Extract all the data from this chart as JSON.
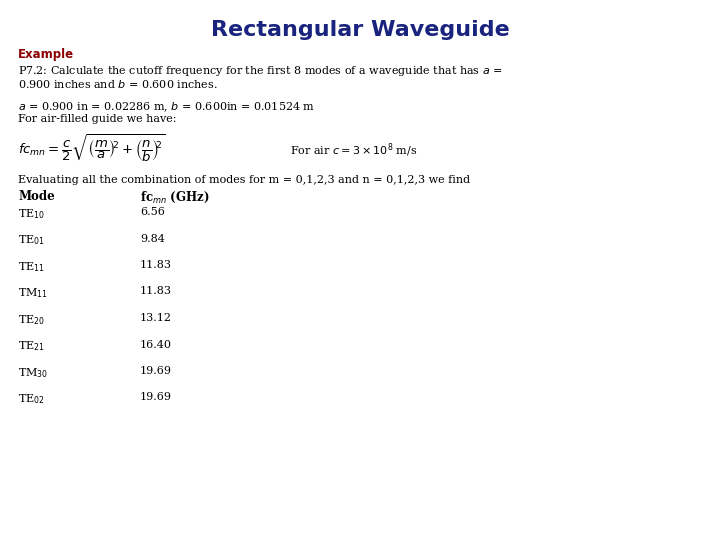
{
  "title": "Rectangular Waveguide",
  "title_color": "#1a237e",
  "title_fontsize": 16,
  "example_label": "Example",
  "example_color": "#8b0000",
  "background_color": "#ffffff",
  "text_fontsize": 8.0,
  "formula_fontsize": 9.5,
  "table_header": [
    "Mode",
    "fc"
  ],
  "table_data": [
    [
      "TE",
      "10",
      "6.56"
    ],
    [
      "TE",
      "01",
      "9.84"
    ],
    [
      "TE",
      "11",
      "11.83"
    ],
    [
      "TM",
      "11",
      "11.83"
    ],
    [
      "TE",
      "20",
      "13.12"
    ],
    [
      "TE",
      "21",
      "16.40"
    ],
    [
      "TM",
      "30",
      "19.69"
    ],
    [
      "TE",
      "02",
      "19.69"
    ]
  ]
}
